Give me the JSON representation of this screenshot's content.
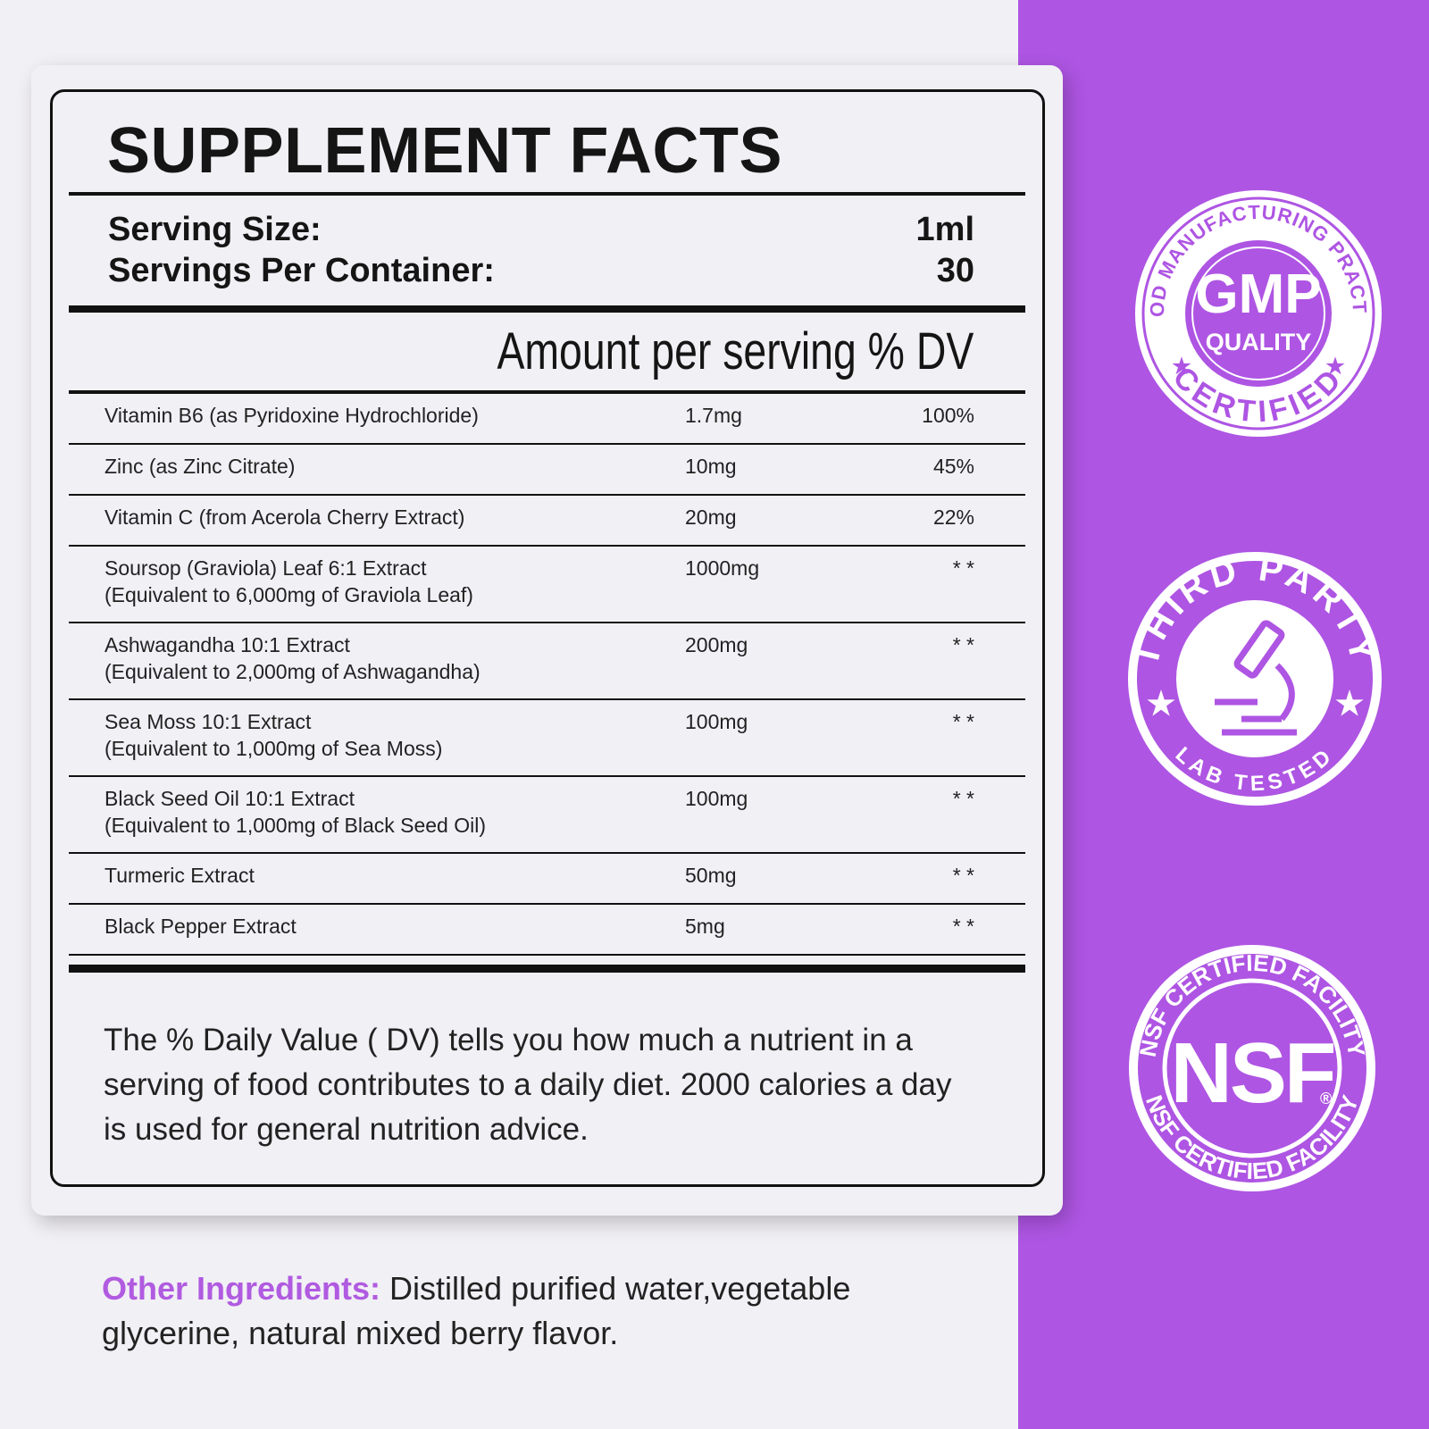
{
  "label": {
    "title": "SUPPLEMENT FACTS",
    "serving": [
      {
        "label": "Serving Size:",
        "value": "1ml"
      },
      {
        "label": "Servings Per Container:",
        "value": "30"
      }
    ],
    "header": "Amount per serving % DV",
    "rows": [
      {
        "name": [
          "Vitamin B6 (as Pyridoxine Hydrochloride)"
        ],
        "amount": "1.7mg",
        "dv": "100%"
      },
      {
        "name": [
          "Zinc (as Zinc Citrate)"
        ],
        "amount": "10mg",
        "dv": "45%"
      },
      {
        "name": [
          "Vitamin C (from Acerola Cherry Extract)"
        ],
        "amount": "20mg",
        "dv": "22%"
      },
      {
        "name": [
          "Soursop (Graviola) Leaf 6:1 Extract",
          "(Equivalent to 6,000mg of Graviola Leaf)"
        ],
        "amount": "1000mg",
        "dv": "* *"
      },
      {
        "name": [
          "Ashwagandha 10:1 Extract",
          "(Equivalent to 2,000mg of Ashwagandha)"
        ],
        "amount": "200mg",
        "dv": "* *"
      },
      {
        "name": [
          "Sea Moss 10:1 Extract",
          "(Equivalent to 1,000mg of Sea Moss)"
        ],
        "amount": "100mg",
        "dv": "* *"
      },
      {
        "name": [
          "Black Seed Oil 10:1 Extract",
          "(Equivalent to 1,000mg of Black Seed Oil)"
        ],
        "amount": "100mg",
        "dv": "* *"
      },
      {
        "name": [
          "Turmeric Extract"
        ],
        "amount": "50mg",
        "dv": "* *"
      },
      {
        "name": [
          "Black Pepper Extract"
        ],
        "amount": "5mg",
        "dv": "* *"
      }
    ],
    "footnote": "The % Daily Value ( DV) tells you how much a nutrient in a serving of food contributes to a daily diet. 2000 calories a day is used for general nutrition advice."
  },
  "other_ingredients": {
    "label": "Other Ingredients:",
    "text": "Distilled purified water,vegetable glycerine, natural mixed berry flavor."
  },
  "badges": [
    {
      "top": "GOOD MANUFACTURING PRACTICE",
      "main": "GMP",
      "sub": "QUALITY",
      "bottom": "CERTIFIED"
    },
    {
      "top": "THIRD PARTY",
      "bottom": "LAB TESTED"
    },
    {
      "top": "NSF CERTIFIED FACILITY",
      "main": "NSF",
      "mark": "®",
      "bottom": "NSF CERTIFIED FACILITY"
    }
  ]
}
